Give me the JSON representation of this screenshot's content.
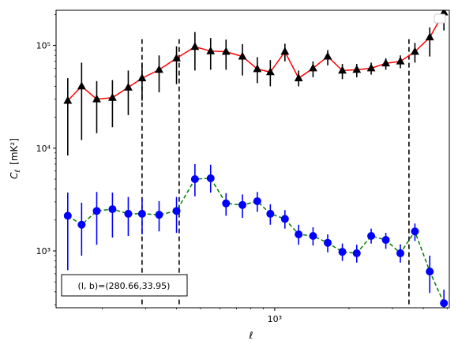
{
  "chart_data": {
    "type": "line",
    "xscale": "log",
    "yscale": "log",
    "xlim": [
      130,
      5100
    ],
    "ylim": [
      280,
      220000
    ],
    "xlabel": "ℓ",
    "ylabel_main": "C",
    "ylabel_sub": "ℓ",
    "ylabel_unit": "[mK²]",
    "x_ticks": [
      {
        "value": 1000,
        "label": "10³"
      }
    ],
    "y_ticks": [
      {
        "value": 1000,
        "label": "10³"
      },
      {
        "value": 10000,
        "label": "10⁴"
      },
      {
        "value": 100000,
        "label": "10⁵"
      }
    ],
    "vlines": [
      290,
      410,
      3500
    ],
    "annotation": "(l, b)=(280.66,33.95)",
    "grid": false,
    "legend": "top-right, empty",
    "x": [
      145,
      165,
      190,
      220,
      255,
      290,
      340,
      400,
      475,
      550,
      635,
      740,
      850,
      960,
      1100,
      1250,
      1430,
      1640,
      1880,
      2150,
      2460,
      2820,
      3230,
      3700,
      4250,
      4850
    ],
    "series": [
      {
        "line_color": "#ff0000",
        "line_style": "solid",
        "marker": "triangle",
        "marker_color": "#000000",
        "error_color": "#000000",
        "values": [
          29000,
          40000,
          30000,
          31000,
          39000,
          48000,
          58000,
          75000,
          97000,
          88000,
          87000,
          78000,
          59000,
          55000,
          87000,
          48000,
          60000,
          78000,
          57000,
          58000,
          60000,
          67000,
          70000,
          87000,
          120000,
          210000
        ],
        "err_low": [
          8500,
          12000,
          14000,
          16000,
          21000,
          29000,
          35000,
          42000,
          57000,
          58000,
          58000,
          51000,
          43000,
          40000,
          70000,
          40000,
          49000,
          64000,
          47000,
          49000,
          52000,
          58000,
          60000,
          68000,
          78000,
          140000
        ],
        "err_high": [
          48000,
          68000,
          45000,
          46000,
          57000,
          68000,
          80000,
          98000,
          135000,
          118000,
          114000,
          103000,
          77000,
          72000,
          104000,
          57000,
          70000,
          90000,
          66000,
          66000,
          68000,
          75000,
          80000,
          106000,
          150000,
          230000
        ]
      },
      {
        "line_color": "#008000",
        "line_style": "dashed",
        "marker": "circle",
        "marker_color": "#0000ff",
        "error_color": "#0000ff",
        "values": [
          2200,
          1800,
          2450,
          2550,
          2300,
          2300,
          2250,
          2450,
          5000,
          5100,
          2900,
          2800,
          3050,
          2300,
          2050,
          1450,
          1400,
          1200,
          980,
          950,
          1400,
          1280,
          950,
          1550,
          630,
          310
        ],
        "err_low": [
          650,
          900,
          1150,
          1350,
          1400,
          1450,
          1550,
          1500,
          3400,
          3700,
          2200,
          2100,
          2400,
          1800,
          1650,
          1150,
          1130,
          970,
          800,
          770,
          1180,
          1050,
          770,
          1250,
          390,
          200
        ],
        "err_high": [
          3700,
          2950,
          3750,
          3700,
          3350,
          3250,
          3050,
          3350,
          7000,
          6900,
          3650,
          3550,
          3750,
          2850,
          2500,
          1800,
          1700,
          1450,
          1180,
          1150,
          1650,
          1500,
          1160,
          1850,
          900,
          420
        ]
      }
    ]
  }
}
